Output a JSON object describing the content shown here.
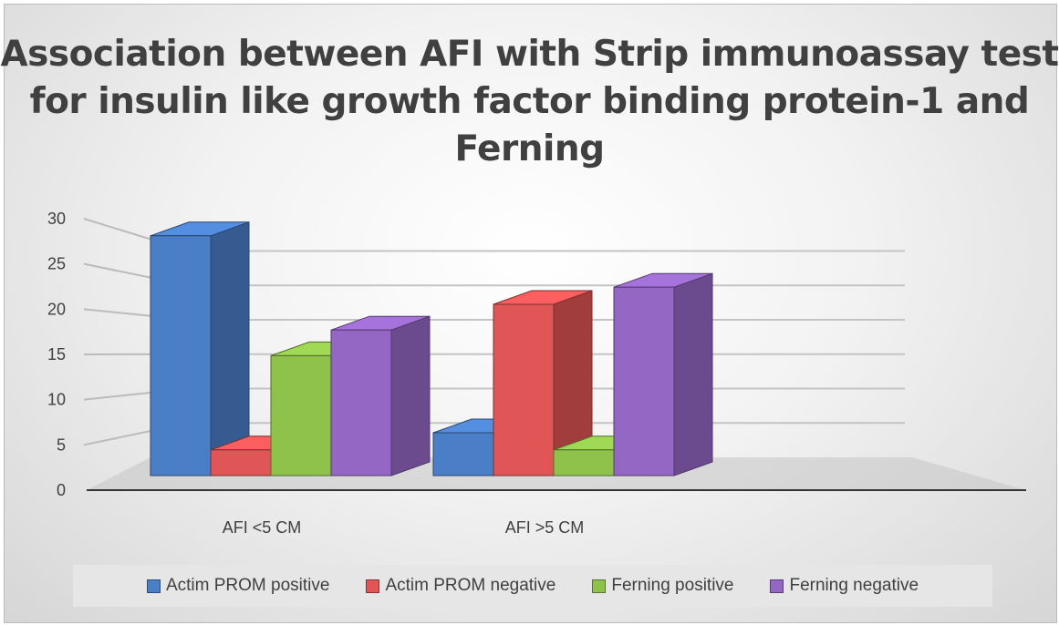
{
  "chart_data": {
    "type": "bar",
    "title": "Association between AFI with Strip immunoassay test for insulin like growth factor binding protein-1 and Ferning",
    "categories": [
      "AFI <5 CM",
      "AFI >5 CM"
    ],
    "series": [
      {
        "name": "Actim PROM positive",
        "values": [
          28,
          5
        ],
        "color": "#4a7fc8"
      },
      {
        "name": "Actim PROM negative",
        "values": [
          3,
          20
        ],
        "color": "#e05555"
      },
      {
        "name": "Ferning positive",
        "values": [
          14,
          3
        ],
        "color": "#8fc24a"
      },
      {
        "name": "Ferning negative",
        "values": [
          17,
          22
        ],
        "color": "#9467c4"
      }
    ],
    "yticks": [
      "0",
      "5",
      "10",
      "15",
      "20",
      "25",
      "30"
    ],
    "ylim": [
      0,
      30
    ],
    "xlabel": "",
    "ylabel": "",
    "legend": "bottom",
    "grid": true
  }
}
